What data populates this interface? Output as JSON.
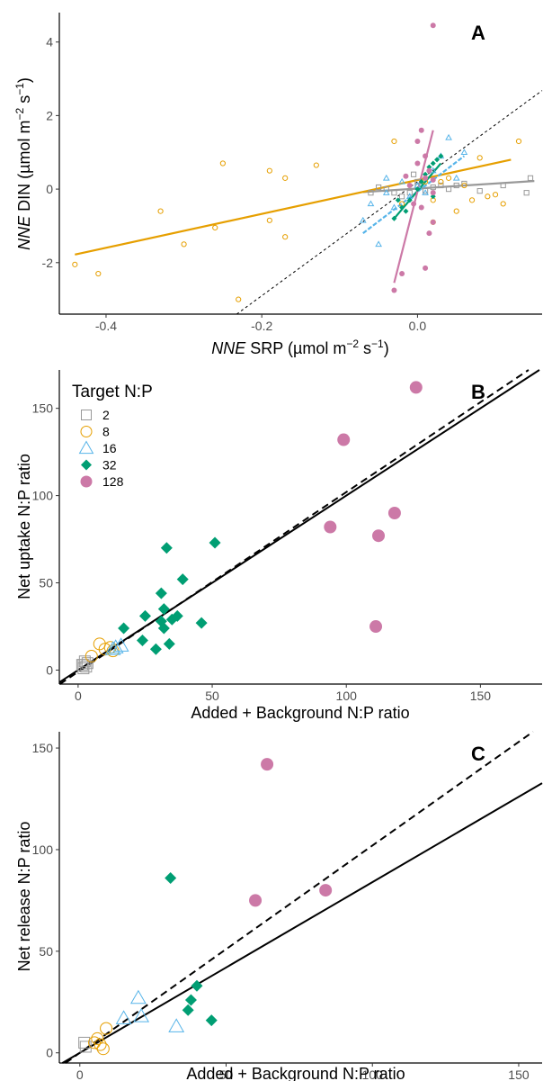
{
  "colors": {
    "2": "#999999",
    "8": "#E69F00",
    "16": "#56B4E9",
    "32": "#009E73",
    "128": "#CC79A7"
  },
  "legend": {
    "title": "Target N:P",
    "entries": [
      {
        "key": "2",
        "label": "2",
        "shape": "open-square"
      },
      {
        "key": "8",
        "label": "8",
        "shape": "open-circle"
      },
      {
        "key": "16",
        "label": "16",
        "shape": "open-triangle"
      },
      {
        "key": "32",
        "label": "32",
        "shape": "filled-diamond"
      },
      {
        "key": "128",
        "label": "128",
        "shape": "filled-circle"
      }
    ]
  },
  "chart_data": [
    {
      "panel": "A",
      "type": "scatter",
      "xlabel_italic": "NNE",
      "xlabel_rest": " SRP (µmol m",
      "xlabel_sup": "−2",
      "xlabel_tail": " s",
      "xlabel_sup2": "−1",
      "xlabel_end": ")",
      "ylabel_italic": "NNE",
      "ylabel_rest": " DIN (µmol m",
      "ylabel_sup": "−2",
      "ylabel_tail": " s",
      "ylabel_sup2": "−1",
      "ylabel_end": ")",
      "xlim": [
        -0.46,
        0.16
      ],
      "ylim": [
        -3.4,
        4.8
      ],
      "xticks": [
        -0.4,
        -0.2,
        0.0
      ],
      "xtick_labels": [
        "-0.4",
        "-0.2",
        "0.0"
      ],
      "yticks": [
        -2,
        0,
        2,
        4
      ],
      "ytick_labels": [
        "-2",
        "0",
        "2",
        "4"
      ],
      "reference_line": {
        "style": "dashed",
        "slope": 15.5,
        "intercept": 0.2
      },
      "fits": [
        {
          "key": "2",
          "x": [
            -0.07,
            0.15
          ],
          "y": [
            -0.08,
            0.22
          ]
        },
        {
          "key": "8",
          "x": [
            -0.44,
            0.12
          ],
          "y": [
            -1.78,
            0.8
          ]
        },
        {
          "key": "16",
          "x": [
            -0.07,
            0.06
          ],
          "y": [
            -1.2,
            0.9
          ]
        },
        {
          "key": "32",
          "x": [
            -0.03,
            0.03
          ],
          "y": [
            -0.8,
            0.7
          ]
        },
        {
          "key": "128",
          "x": [
            -0.03,
            0.02
          ],
          "y": [
            -2.55,
            1.6
          ]
        }
      ],
      "series": [
        {
          "key": "2",
          "points": [
            [
              -0.06,
              -0.1
            ],
            [
              -0.04,
              0.0
            ],
            [
              -0.03,
              -0.1
            ],
            [
              -0.02,
              -0.2
            ],
            [
              -0.01,
              -0.1
            ],
            [
              0.0,
              0.1
            ],
            [
              0.01,
              -0.05
            ],
            [
              0.02,
              0.05
            ],
            [
              0.03,
              0.1
            ],
            [
              0.05,
              0.1
            ],
            [
              0.08,
              -0.05
            ],
            [
              0.11,
              0.1
            ],
            [
              0.14,
              -0.1
            ],
            [
              0.145,
              0.3
            ],
            [
              -0.05,
              0.05
            ],
            [
              0.04,
              0.0
            ],
            [
              0.06,
              0.15
            ],
            [
              -0.005,
              0.4
            ],
            [
              0.0,
              0.2
            ]
          ]
        },
        {
          "key": "8",
          "points": [
            [
              -0.44,
              -2.05
            ],
            [
              -0.41,
              -2.3
            ],
            [
              -0.33,
              -0.6
            ],
            [
              -0.3,
              -1.5
            ],
            [
              -0.26,
              -1.05
            ],
            [
              -0.25,
              0.7
            ],
            [
              -0.23,
              -3.0
            ],
            [
              -0.19,
              -0.85
            ],
            [
              -0.19,
              0.5
            ],
            [
              -0.17,
              0.3
            ],
            [
              -0.17,
              -1.3
            ],
            [
              -0.13,
              0.65
            ],
            [
              -0.03,
              1.3
            ],
            [
              0.01,
              0.2
            ],
            [
              0.02,
              -0.3
            ],
            [
              0.03,
              0.2
            ],
            [
              0.05,
              -0.6
            ],
            [
              0.06,
              0.1
            ],
            [
              0.07,
              -0.3
            ],
            [
              0.09,
              -0.2
            ],
            [
              0.1,
              -0.15
            ],
            [
              0.11,
              -0.4
            ],
            [
              0.13,
              1.3
            ],
            [
              0.04,
              0.3
            ],
            [
              -0.02,
              -0.4
            ],
            [
              0.08,
              0.85
            ],
            [
              0.02,
              -0.9
            ]
          ]
        },
        {
          "key": "16",
          "points": [
            [
              -0.07,
              -0.85
            ],
            [
              -0.06,
              -0.4
            ],
            [
              -0.05,
              -1.5
            ],
            [
              -0.04,
              0.3
            ],
            [
              -0.03,
              -0.5
            ],
            [
              -0.02,
              0.2
            ],
            [
              -0.01,
              -0.2
            ],
            [
              0.0,
              0.1
            ],
            [
              0.01,
              -0.1
            ],
            [
              0.02,
              0.5
            ],
            [
              0.03,
              0.9
            ],
            [
              0.04,
              1.4
            ],
            [
              0.05,
              0.3
            ],
            [
              0.06,
              1.0
            ],
            [
              -0.04,
              -0.1
            ]
          ]
        },
        {
          "key": "32",
          "points": [
            [
              -0.03,
              -0.8
            ],
            [
              -0.02,
              -0.5
            ],
            [
              -0.01,
              -0.3
            ],
            [
              0.0,
              0.0
            ],
            [
              0.005,
              0.2
            ],
            [
              0.01,
              0.4
            ],
            [
              0.015,
              0.6
            ],
            [
              0.02,
              0.7
            ],
            [
              0.03,
              0.9
            ],
            [
              -0.025,
              -0.3
            ],
            [
              -0.01,
              0.1
            ],
            [
              0.02,
              -0.2
            ],
            [
              0.025,
              0.8
            ],
            [
              -0.015,
              -0.6
            ]
          ]
        },
        {
          "key": "128",
          "points": [
            [
              0.02,
              4.45
            ],
            [
              -0.03,
              -2.75
            ],
            [
              -0.02,
              -2.3
            ],
            [
              0.01,
              -2.15
            ],
            [
              0.015,
              -1.2
            ],
            [
              0.02,
              -0.9
            ],
            [
              0.005,
              1.6
            ],
            [
              0.01,
              0.9
            ],
            [
              0.0,
              0.7
            ],
            [
              -0.01,
              0.1
            ],
            [
              -0.005,
              -0.4
            ],
            [
              0.02,
              -0.1
            ],
            [
              0.01,
              0.3
            ],
            [
              0.0,
              1.3
            ],
            [
              0.005,
              -0.5
            ],
            [
              0.015,
              0.5
            ],
            [
              -0.015,
              0.35
            ],
            [
              0.02,
              0.25
            ]
          ]
        }
      ]
    },
    {
      "panel": "B",
      "type": "scatter",
      "xlabel": "Added + Background N:P ratio",
      "ylabel": "Net uptake N:P ratio",
      "xlim": [
        -7,
        173
      ],
      "ylim": [
        -8,
        172
      ],
      "xticks": [
        0,
        50,
        100,
        150
      ],
      "xtick_labels": [
        "0",
        "50",
        "100",
        "150"
      ],
      "yticks": [
        0,
        50,
        100,
        150
      ],
      "ytick_labels": [
        "0",
        "50",
        "100",
        "150"
      ],
      "lines": [
        {
          "style": "solid",
          "slope": 1.0,
          "intercept": 0
        },
        {
          "style": "dashed",
          "slope": 1.03,
          "intercept": -1
        }
      ],
      "series": [
        {
          "key": "2",
          "points": [
            [
              1.5,
              3
            ],
            [
              2,
              1
            ],
            [
              2.5,
              5
            ],
            [
              3,
              2
            ],
            [
              3.5,
              4
            ],
            [
              2,
              3
            ]
          ]
        },
        {
          "key": "8",
          "points": [
            [
              5,
              8
            ],
            [
              8,
              15
            ],
            [
              10,
              12
            ],
            [
              12,
              13
            ],
            [
              13,
              11
            ]
          ]
        },
        {
          "key": "16",
          "points": [
            [
              13,
              12
            ],
            [
              16,
              14
            ],
            [
              14,
              13
            ]
          ]
        },
        {
          "key": "32",
          "points": [
            [
              17,
              24
            ],
            [
              24,
              17
            ],
            [
              25,
              31
            ],
            [
              29,
              12
            ],
            [
              31,
              28
            ],
            [
              31,
              44
            ],
            [
              32,
              24
            ],
            [
              32,
              35
            ],
            [
              33,
              70
            ],
            [
              34,
              15
            ],
            [
              35,
              29
            ],
            [
              37,
              31
            ],
            [
              39,
              52
            ],
            [
              46,
              27
            ],
            [
              51,
              73
            ]
          ]
        },
        {
          "key": "128",
          "points": [
            [
              94,
              82
            ],
            [
              99,
              132
            ],
            [
              111,
              25
            ],
            [
              112,
              77
            ],
            [
              118,
              90
            ],
            [
              126,
              162
            ]
          ]
        }
      ]
    },
    {
      "panel": "C",
      "type": "scatter",
      "xlabel": "Added + Background N:P ratio",
      "ylabel": "Net release N:P ratio",
      "xlim": [
        -7,
        158
      ],
      "ylim": [
        -5,
        158
      ],
      "xticks": [
        0,
        50,
        100,
        150
      ],
      "xtick_labels": [
        "0",
        "50",
        "100",
        "150"
      ],
      "yticks": [
        0,
        50,
        100,
        150
      ],
      "ytick_labels": [
        "0",
        "50",
        "100",
        "150"
      ],
      "lines": [
        {
          "style": "solid",
          "slope": 0.84,
          "intercept": 0
        },
        {
          "style": "dashed",
          "slope": 1.02,
          "intercept": 0
        }
      ],
      "series": [
        {
          "key": "2",
          "points": [
            [
              1.5,
              5
            ],
            [
              2,
              3
            ]
          ]
        },
        {
          "key": "8",
          "points": [
            [
              5,
              5
            ],
            [
              6,
              7
            ],
            [
              7,
              4
            ],
            [
              8,
              2
            ],
            [
              9,
              12
            ]
          ]
        },
        {
          "key": "16",
          "points": [
            [
              15,
              17
            ],
            [
              20,
              27
            ],
            [
              21,
              18
            ],
            [
              33,
              13
            ]
          ]
        },
        {
          "key": "32",
          "points": [
            [
              31,
              86
            ],
            [
              37,
              21
            ],
            [
              38,
              26
            ],
            [
              40,
              33
            ],
            [
              45,
              16
            ]
          ]
        },
        {
          "key": "128",
          "points": [
            [
              60,
              75
            ],
            [
              64,
              142
            ],
            [
              84,
              80
            ]
          ]
        }
      ]
    }
  ]
}
